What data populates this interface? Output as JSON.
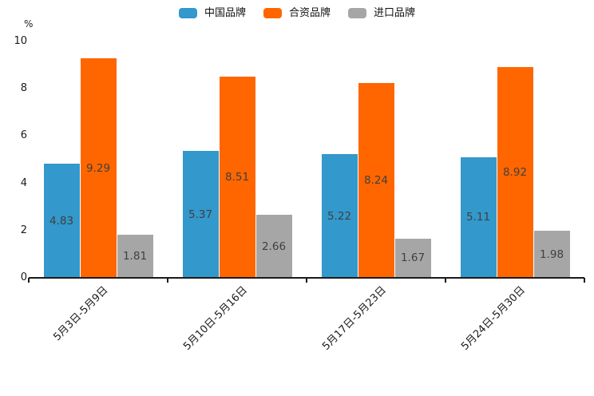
{
  "chart_data": {
    "type": "bar",
    "title": "",
    "unit_label": "%",
    "categories": [
      "5月3日-5月9日",
      "5月10日-5月16日",
      "5月17日-5月23日",
      "5月24日-5月30日"
    ],
    "series": [
      {
        "name": "中国品牌",
        "color": "#3398cb",
        "values": [
          4.83,
          5.37,
          5.22,
          5.11
        ]
      },
      {
        "name": "合资品牌",
        "color": "#ff6600",
        "values": [
          9.29,
          8.51,
          8.24,
          8.92
        ]
      },
      {
        "name": "进口品牌",
        "color": "#a6a6a6",
        "values": [
          1.81,
          2.66,
          1.67,
          1.98
        ]
      }
    ],
    "ylim": [
      0,
      10
    ],
    "yticks": [
      0,
      2,
      4,
      6,
      8,
      10
    ],
    "legend_position": "top-center",
    "grid": false,
    "value_labels": "inside-center",
    "colors": {
      "value_label_text": "#404040",
      "axis_text": "#1a1a1a",
      "axis_line": "#1a1a1a",
      "background": "#ffffff"
    }
  }
}
